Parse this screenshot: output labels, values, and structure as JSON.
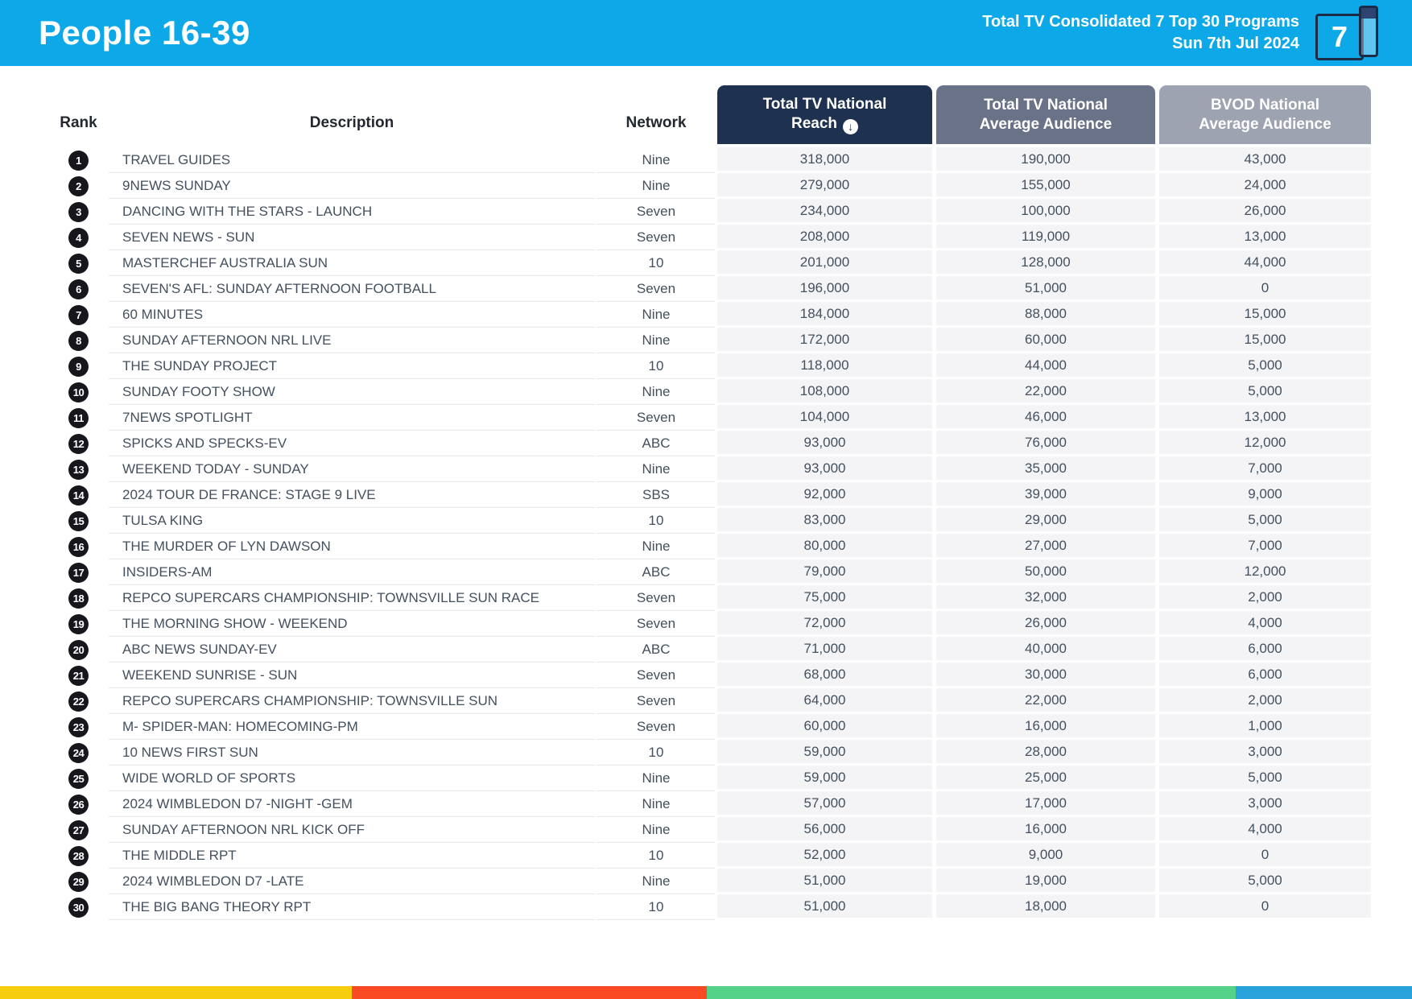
{
  "header": {
    "title": "People 16-39",
    "subtitle_line1": "Total TV Consolidated 7 Top 30 Programs",
    "subtitle_line2": "Sun 7th Jul 2024",
    "calendar_day": "7"
  },
  "colors": {
    "header_bg": "#0DA8E7",
    "reach_header_bg": "#1F3150",
    "avg_header_bg": "#6A7287",
    "bvod_header_bg": "#9DA3B0",
    "cell_bg": "#F4F4F7",
    "text_dark": "#44505E",
    "badge_bg": "#16161C"
  },
  "table": {
    "rank_label": "Rank",
    "description_label": "Description",
    "network_label": "Network",
    "reach_label_line1": "Total TV National",
    "reach_label_line2": "Reach",
    "avg_label_line1": "Total TV National",
    "avg_label_line2": "Average Audience",
    "bvod_label_line1": "BVOD National",
    "bvod_label_line2": "Average Audience",
    "sort_icon": "↓",
    "sort": {
      "column": "Total TV National Reach",
      "direction": "descending"
    },
    "rows": [
      {
        "rank": "1",
        "description": "TRAVEL GUIDES",
        "network": "Nine",
        "reach": "318,000",
        "avg_audience": "190,000",
        "bvod": "43,000"
      },
      {
        "rank": "2",
        "description": "9NEWS SUNDAY",
        "network": "Nine",
        "reach": "279,000",
        "avg_audience": "155,000",
        "bvod": "24,000"
      },
      {
        "rank": "3",
        "description": "DANCING WITH THE STARS - LAUNCH",
        "network": "Seven",
        "reach": "234,000",
        "avg_audience": "100,000",
        "bvod": "26,000"
      },
      {
        "rank": "4",
        "description": "SEVEN NEWS - SUN",
        "network": "Seven",
        "reach": "208,000",
        "avg_audience": "119,000",
        "bvod": "13,000"
      },
      {
        "rank": "5",
        "description": "MASTERCHEF AUSTRALIA SUN",
        "network": "10",
        "reach": "201,000",
        "avg_audience": "128,000",
        "bvod": "44,000"
      },
      {
        "rank": "6",
        "description": "SEVEN'S AFL: SUNDAY AFTERNOON FOOTBALL",
        "network": "Seven",
        "reach": "196,000",
        "avg_audience": "51,000",
        "bvod": "0"
      },
      {
        "rank": "7",
        "description": "60 MINUTES",
        "network": "Nine",
        "reach": "184,000",
        "avg_audience": "88,000",
        "bvod": "15,000"
      },
      {
        "rank": "8",
        "description": "SUNDAY AFTERNOON NRL LIVE",
        "network": "Nine",
        "reach": "172,000",
        "avg_audience": "60,000",
        "bvod": "15,000"
      },
      {
        "rank": "9",
        "description": "THE SUNDAY PROJECT",
        "network": "10",
        "reach": "118,000",
        "avg_audience": "44,000",
        "bvod": "5,000"
      },
      {
        "rank": "10",
        "description": "SUNDAY FOOTY SHOW",
        "network": "Nine",
        "reach": "108,000",
        "avg_audience": "22,000",
        "bvod": "5,000"
      },
      {
        "rank": "11",
        "description": "7NEWS SPOTLIGHT",
        "network": "Seven",
        "reach": "104,000",
        "avg_audience": "46,000",
        "bvod": "13,000"
      },
      {
        "rank": "12",
        "description": "SPICKS AND SPECKS-EV",
        "network": "ABC",
        "reach": "93,000",
        "avg_audience": "76,000",
        "bvod": "12,000"
      },
      {
        "rank": "13",
        "description": "WEEKEND TODAY - SUNDAY",
        "network": "Nine",
        "reach": "93,000",
        "avg_audience": "35,000",
        "bvod": "7,000"
      },
      {
        "rank": "14",
        "description": "2024 TOUR DE FRANCE: STAGE 9 LIVE",
        "network": "SBS",
        "reach": "92,000",
        "avg_audience": "39,000",
        "bvod": "9,000"
      },
      {
        "rank": "15",
        "description": "TULSA KING",
        "network": "10",
        "reach": "83,000",
        "avg_audience": "29,000",
        "bvod": "5,000"
      },
      {
        "rank": "16",
        "description": "THE MURDER OF LYN DAWSON",
        "network": "Nine",
        "reach": "80,000",
        "avg_audience": "27,000",
        "bvod": "7,000"
      },
      {
        "rank": "17",
        "description": "INSIDERS-AM",
        "network": "ABC",
        "reach": "79,000",
        "avg_audience": "50,000",
        "bvod": "12,000"
      },
      {
        "rank": "18",
        "description": "REPCO SUPERCARS CHAMPIONSHIP: TOWNSVILLE SUN RACE",
        "network": "Seven",
        "reach": "75,000",
        "avg_audience": "32,000",
        "bvod": "2,000"
      },
      {
        "rank": "19",
        "description": "THE MORNING SHOW - WEEKEND",
        "network": "Seven",
        "reach": "72,000",
        "avg_audience": "26,000",
        "bvod": "4,000"
      },
      {
        "rank": "20",
        "description": "ABC NEWS SUNDAY-EV",
        "network": "ABC",
        "reach": "71,000",
        "avg_audience": "40,000",
        "bvod": "6,000"
      },
      {
        "rank": "21",
        "description": "WEEKEND SUNRISE - SUN",
        "network": "Seven",
        "reach": "68,000",
        "avg_audience": "30,000",
        "bvod": "6,000"
      },
      {
        "rank": "22",
        "description": "REPCO SUPERCARS CHAMPIONSHIP: TOWNSVILLE SUN",
        "network": "Seven",
        "reach": "64,000",
        "avg_audience": "22,000",
        "bvod": "2,000"
      },
      {
        "rank": "23",
        "description": "M- SPIDER-MAN: HOMECOMING-PM",
        "network": "Seven",
        "reach": "60,000",
        "avg_audience": "16,000",
        "bvod": "1,000"
      },
      {
        "rank": "24",
        "description": "10 NEWS FIRST SUN",
        "network": "10",
        "reach": "59,000",
        "avg_audience": "28,000",
        "bvod": "3,000"
      },
      {
        "rank": "25",
        "description": "WIDE WORLD OF SPORTS",
        "network": "Nine",
        "reach": "59,000",
        "avg_audience": "25,000",
        "bvod": "5,000"
      },
      {
        "rank": "26",
        "description": "2024 WIMBLEDON D7 -NIGHT -GEM",
        "network": "Nine",
        "reach": "57,000",
        "avg_audience": "17,000",
        "bvod": "3,000"
      },
      {
        "rank": "27",
        "description": "SUNDAY AFTERNOON NRL KICK OFF",
        "network": "Nine",
        "reach": "56,000",
        "avg_audience": "16,000",
        "bvod": "4,000"
      },
      {
        "rank": "28",
        "description": "THE MIDDLE RPT",
        "network": "10",
        "reach": "52,000",
        "avg_audience": "9,000",
        "bvod": "0"
      },
      {
        "rank": "29",
        "description": "2024 WIMBLEDON D7 -LATE",
        "network": "Nine",
        "reach": "51,000",
        "avg_audience": "19,000",
        "bvod": "5,000"
      },
      {
        "rank": "30",
        "description": "THE BIG BANG THEORY RPT",
        "network": "10",
        "reach": "51,000",
        "avg_audience": "18,000",
        "bvod": "0"
      }
    ]
  },
  "footer": {
    "segments": [
      {
        "name": "yellow",
        "color": "#F6CE0D",
        "width_pct": 24.9
      },
      {
        "name": "red",
        "color": "#FA4A23",
        "width_pct": 25.15
      },
      {
        "name": "green",
        "color": "#54D289",
        "width_pct": 37.45
      },
      {
        "name": "blue",
        "color": "#29A2DB",
        "width_pct": 12.5
      }
    ]
  }
}
